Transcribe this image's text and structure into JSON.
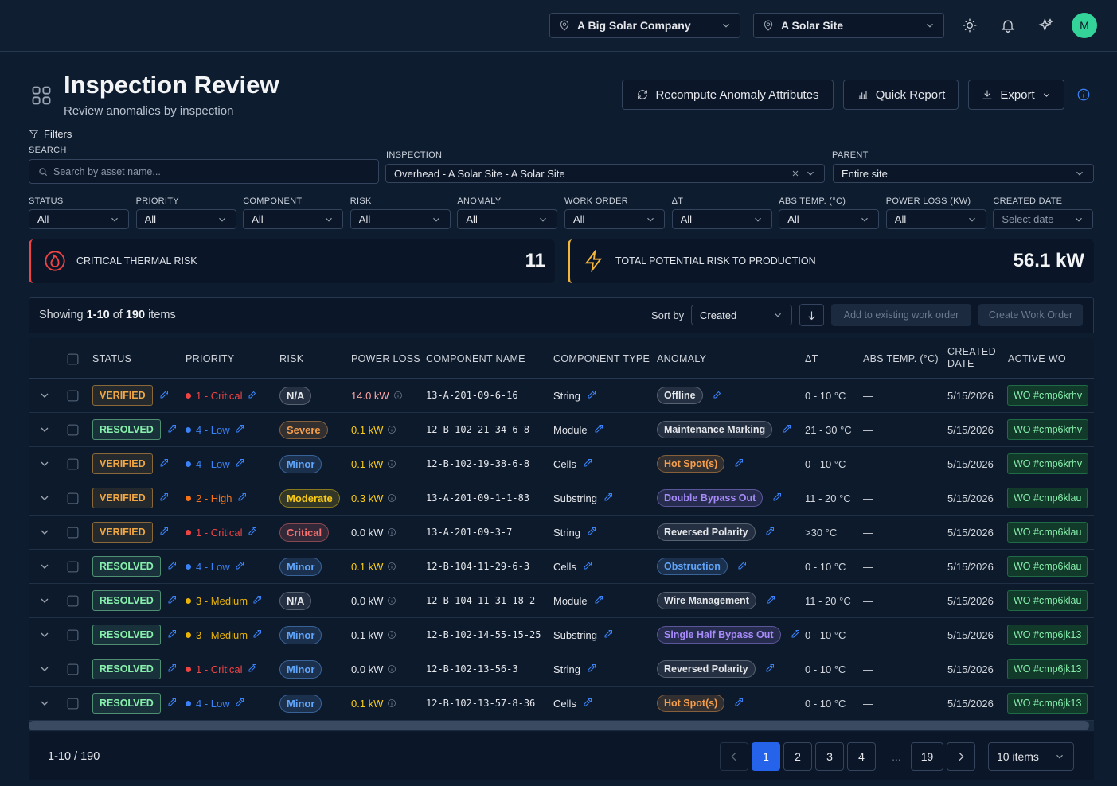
{
  "header": {
    "org": "A Big Solar Company",
    "site": "A Solar Site",
    "avatar": "M"
  },
  "page": {
    "title": "Inspection Review",
    "subtitle": "Review anomalies by inspection",
    "actions": [
      "Recompute Anomaly Attributes",
      "Quick Report",
      "Export"
    ]
  },
  "filters": {
    "label": "Filters",
    "search": {
      "label": "SEARCH",
      "placeholder": "Search by asset name..."
    },
    "inspection": {
      "label": "INSPECTION",
      "value": "Overhead - A Solar Site - A Solar Site"
    },
    "parent": {
      "label": "PARENT",
      "value": "Entire site"
    },
    "selects": [
      {
        "label": "STATUS",
        "value": "All"
      },
      {
        "label": "PRIORITY",
        "value": "All"
      },
      {
        "label": "COMPONENT",
        "value": "All"
      },
      {
        "label": "RISK",
        "value": "All"
      },
      {
        "label": "ANOMALY",
        "value": "All"
      },
      {
        "label": "WORK ORDER",
        "value": "All"
      },
      {
        "label": "ΔT",
        "value": "All"
      },
      {
        "label": "ABS TEMP. (°C)",
        "value": "All"
      },
      {
        "label": "POWER LOSS (KW)",
        "value": "All"
      },
      {
        "label": "CREATED DATE",
        "value": "Select date"
      }
    ]
  },
  "kpis": [
    {
      "label": "CRITICAL THERMAL RISK",
      "value": "11",
      "color": "#ef4444"
    },
    {
      "label": "TOTAL POTENTIAL RISK TO PRODUCTION",
      "value": "56.1 kW",
      "color": "#f5b73b"
    }
  ],
  "toolbar": {
    "showing": [
      "Showing",
      "1-10",
      "of",
      "190",
      "items"
    ],
    "sort_label": "Sort by",
    "sort_value": "Created",
    "buttons": [
      "Add to existing work order",
      "Create Work Order"
    ]
  },
  "table": {
    "columns": [
      "STATUS",
      "PRIORITY",
      "RISK",
      "POWER LOSS",
      "COMPONENT NAME",
      "COMPONENT TYPE",
      "ANOMALY",
      "ΔT",
      "ABS TEMP. (°C)",
      "CREATED DATE",
      "ACTIVE WO"
    ],
    "rows": [
      {
        "status": "VERIFIED",
        "status_color": "#f0a742",
        "priority": "1 - Critical",
        "priority_color": "#ef4444",
        "risk": "N/A",
        "risk_color": "#9ca3af",
        "power_loss": "14.0 kW",
        "power_color": "#fca5a5",
        "component_name": "13-A-201-09-6-16",
        "component_type": "String",
        "anomaly": "Offline",
        "anomaly_color": "#9ca3af",
        "delta_t": "0 - 10 °C",
        "abs_temp": "—",
        "created_date": "5/15/2026",
        "active_wo": "WO #cmp6krhv"
      },
      {
        "status": "RESOLVED",
        "status_color": "#86efac",
        "priority": "4 - Low",
        "priority_color": "#3b82f6",
        "risk": "Severe",
        "risk_color": "#f59e4b",
        "power_loss": "0.1 kW",
        "power_color": "#facc15",
        "component_name": "12-B-102-21-34-6-8",
        "component_type": "Module",
        "anomaly": "Maintenance Marking",
        "anomaly_color": "#9ca3af",
        "delta_t": "21 - 30 °C",
        "abs_temp": "—",
        "created_date": "5/15/2026",
        "active_wo": "WO #cmp6krhv"
      },
      {
        "status": "VERIFIED",
        "status_color": "#f0a742",
        "priority": "4 - Low",
        "priority_color": "#3b82f6",
        "risk": "Minor",
        "risk_color": "#60a5fa",
        "power_loss": "0.1 kW",
        "power_color": "#facc15",
        "component_name": "12-B-102-19-38-6-8",
        "component_type": "Cells",
        "anomaly": "Hot Spot(s)",
        "anomaly_color": "#f59e4b",
        "delta_t": "0 - 10 °C",
        "abs_temp": "—",
        "created_date": "5/15/2026",
        "active_wo": "WO #cmp6krhv"
      },
      {
        "status": "VERIFIED",
        "status_color": "#f0a742",
        "priority": "2 - High",
        "priority_color": "#f97316",
        "risk": "Moderate",
        "risk_color": "#facc15",
        "power_loss": "0.3 kW",
        "power_color": "#facc15",
        "component_name": "13-A-201-09-1-1-83",
        "component_type": "Substring",
        "anomaly": "Double Bypass Out",
        "anomaly_color": "#a78bfa",
        "delta_t": "11 - 20 °C",
        "abs_temp": "—",
        "created_date": "5/15/2026",
        "active_wo": "WO #cmp6klau"
      },
      {
        "status": "VERIFIED",
        "status_color": "#f0a742",
        "priority": "1 - Critical",
        "priority_color": "#ef4444",
        "risk": "Critical",
        "risk_color": "#f87171",
        "power_loss": "0.0 kW",
        "power_color": "#e5e7eb",
        "component_name": "13-A-201-09-3-7",
        "component_type": "String",
        "anomaly": "Reversed Polarity",
        "anomaly_color": "#9ca3af",
        "delta_t": ">30 °C",
        "abs_temp": "—",
        "created_date": "5/15/2026",
        "active_wo": "WO #cmp6klau"
      },
      {
        "status": "RESOLVED",
        "status_color": "#86efac",
        "priority": "4 - Low",
        "priority_color": "#3b82f6",
        "risk": "Minor",
        "risk_color": "#60a5fa",
        "power_loss": "0.1 kW",
        "power_color": "#facc15",
        "component_name": "12-B-104-11-29-6-3",
        "component_type": "Cells",
        "anomaly": "Obstruction",
        "anomaly_color": "#60a5fa",
        "delta_t": "0 - 10 °C",
        "abs_temp": "—",
        "created_date": "5/15/2026",
        "active_wo": "WO #cmp6klau"
      },
      {
        "status": "RESOLVED",
        "status_color": "#86efac",
        "priority": "3 - Medium",
        "priority_color": "#eab308",
        "risk": "N/A",
        "risk_color": "#9ca3af",
        "power_loss": "0.0 kW",
        "power_color": "#e5e7eb",
        "component_name": "12-B-104-11-31-18-2",
        "component_type": "Module",
        "anomaly": "Wire Management",
        "anomaly_color": "#9ca3af",
        "delta_t": "11 - 20 °C",
        "abs_temp": "—",
        "created_date": "5/15/2026",
        "active_wo": "WO #cmp6klau"
      },
      {
        "status": "RESOLVED",
        "status_color": "#86efac",
        "priority": "3 - Medium",
        "priority_color": "#eab308",
        "risk": "Minor",
        "risk_color": "#60a5fa",
        "power_loss": "0.1 kW",
        "power_color": "#e5e7eb",
        "component_name": "12-B-102-14-55-15-25",
        "component_type": "Substring",
        "anomaly": "Single Half Bypass Out",
        "anomaly_color": "#a78bfa",
        "delta_t": "0 - 10 °C",
        "abs_temp": "—",
        "created_date": "5/15/2026",
        "active_wo": "WO #cmp6jk13"
      },
      {
        "status": "RESOLVED",
        "status_color": "#86efac",
        "priority": "1 - Critical",
        "priority_color": "#ef4444",
        "risk": "Minor",
        "risk_color": "#60a5fa",
        "power_loss": "0.0 kW",
        "power_color": "#e5e7eb",
        "component_name": "12-B-102-13-56-3",
        "component_type": "String",
        "anomaly": "Reversed Polarity",
        "anomaly_color": "#9ca3af",
        "delta_t": "0 - 10 °C",
        "abs_temp": "—",
        "created_date": "5/15/2026",
        "active_wo": "WO #cmp6jk13"
      },
      {
        "status": "RESOLVED",
        "status_color": "#86efac",
        "priority": "4 - Low",
        "priority_color": "#3b82f6",
        "risk": "Minor",
        "risk_color": "#60a5fa",
        "power_loss": "0.1 kW",
        "power_color": "#facc15",
        "component_name": "12-B-102-13-57-8-36",
        "component_type": "Cells",
        "anomaly": "Hot Spot(s)",
        "anomaly_color": "#f59e4b",
        "delta_t": "0 - 10 °C",
        "abs_temp": "—",
        "created_date": "5/15/2026",
        "active_wo": "WO #cmp6jk13"
      }
    ]
  },
  "pagination": {
    "summary": "1-10 / 190",
    "pages": [
      "1",
      "2",
      "3",
      "4",
      "...",
      "19"
    ],
    "page_size": "10 items"
  }
}
